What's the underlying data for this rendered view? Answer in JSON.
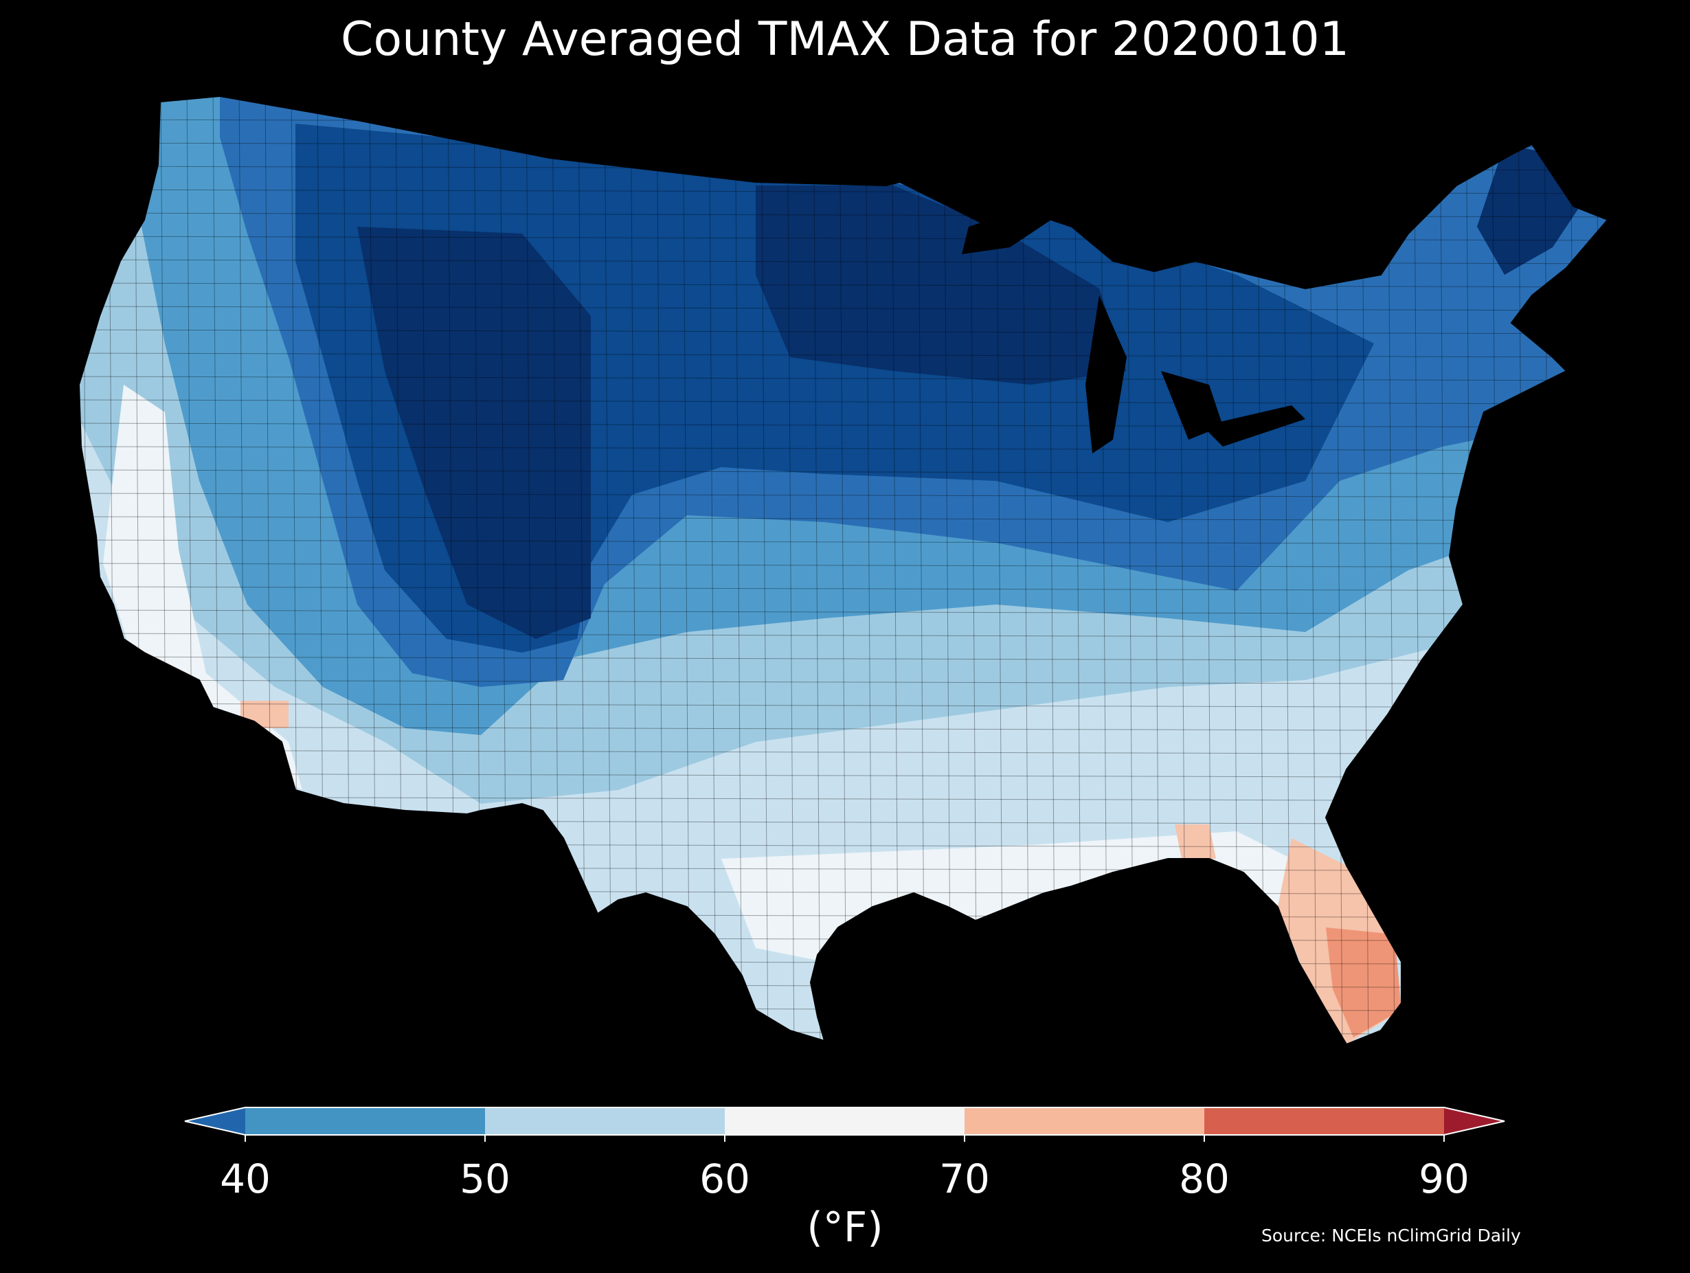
{
  "title": "County Averaged TMAX Data for 20200101",
  "source": "Source: NCEIs nClimGrid Daily",
  "colorbar": {
    "unit_label": "(°F)",
    "ticks": [
      "40",
      "50",
      "60",
      "70",
      "80",
      "90"
    ],
    "bins": [
      {
        "range": [
          30,
          40
        ],
        "color": "#2166ac",
        "extend": "min"
      },
      {
        "range": [
          40,
          50
        ],
        "color": "#4393c3"
      },
      {
        "range": [
          50,
          60
        ],
        "color": "#b4d6e8"
      },
      {
        "range": [
          60,
          70
        ],
        "color": "#f4f4f4"
      },
      {
        "range": [
          70,
          80
        ],
        "color": "#f6b99c"
      },
      {
        "range": [
          80,
          90
        ],
        "color": "#d6604d"
      },
      {
        "range": [
          90,
          100
        ],
        "color": "#9e1b2e",
        "extend": "max"
      }
    ]
  },
  "map_colors": {
    "coldest": "#08306b",
    "very_cold": "#0d4a8f",
    "cold": "#2a6fb5",
    "cool": "#4f9ccc",
    "mild": "#9ecae1",
    "light": "#c9e1ef",
    "near_neutral": "#eef4f8",
    "warm": "#f6c3ab",
    "warmest": "#ef9577",
    "background": "#000000"
  }
}
